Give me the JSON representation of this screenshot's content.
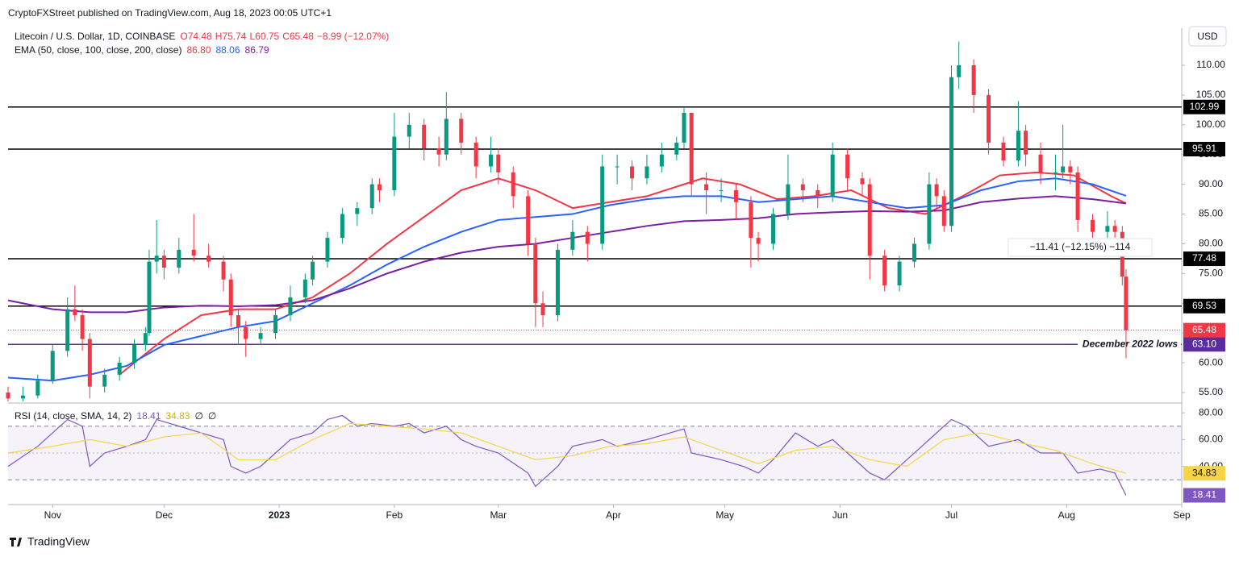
{
  "header": {
    "publisher": "CryptoFXStreet published on TradingView.com, Aug 18, 2023 00:05 UTC+1",
    "currency": "USD",
    "footer": "TradingView"
  },
  "chart_data": {
    "type": "candlestick",
    "legend": {
      "symbol": "Litecoin / U.S. Dollar, 1D, COINBASE",
      "open": "O74.48",
      "high": "H75.74",
      "low": "L60.75",
      "close": "C65.48",
      "change": "−8.99 (−12.07%)"
    },
    "ema_legend": {
      "label": "EMA (50, close, 100, close, 200, close)",
      "values": [
        "86.80",
        "88.06",
        "86.79"
      ]
    },
    "xlim": [
      -12,
      304
    ],
    "xticks": [
      {
        "value": 0,
        "label": "Nov"
      },
      {
        "value": 30,
        "label": "Dec"
      },
      {
        "value": 61,
        "label": "2023"
      },
      {
        "value": 92,
        "label": "Feb"
      },
      {
        "value": 120,
        "label": "Mar"
      },
      {
        "value": 151,
        "label": "Apr"
      },
      {
        "value": 181,
        "label": "May"
      },
      {
        "value": 212,
        "label": "Jun"
      },
      {
        "value": 242,
        "label": "Jul"
      },
      {
        "value": 273,
        "label": "Aug"
      },
      {
        "value": 304,
        "label": "Sep"
      }
    ],
    "ylim": [
      53.24,
      116.23
    ],
    "yticks": [
      {
        "value": 55,
        "label": "55.00"
      },
      {
        "value": 60,
        "label": "60.00"
      },
      {
        "value": 65,
        "label": "65.00"
      },
      {
        "value": 70,
        "label": "70.00"
      },
      {
        "value": 75,
        "label": "75.00"
      },
      {
        "value": 80,
        "label": "80.00"
      },
      {
        "value": 85,
        "label": "85.00"
      },
      {
        "value": 90,
        "label": "90.00"
      },
      {
        "value": 95,
        "label": "95.00"
      },
      {
        "value": 100,
        "label": "100.00"
      },
      {
        "value": 105,
        "label": "105.00"
      },
      {
        "value": 110,
        "label": "110.00"
      }
    ],
    "up_color": "#089981",
    "down_color": "#f23645",
    "candles": [
      {
        "x": -12,
        "o": 55,
        "h": 56,
        "l": 53.5,
        "c": 54
      },
      {
        "x": -8,
        "o": 54,
        "h": 56,
        "l": 53.5,
        "c": 54.5
      },
      {
        "x": -4,
        "o": 54.5,
        "h": 58,
        "l": 54,
        "c": 57
      },
      {
        "x": 0,
        "o": 57,
        "h": 63,
        "l": 56.5,
        "c": 62
      },
      {
        "x": 4,
        "o": 62,
        "h": 71,
        "l": 61,
        "c": 69
      },
      {
        "x": 6,
        "o": 69,
        "h": 73,
        "l": 67,
        "c": 68
      },
      {
        "x": 8,
        "o": 68,
        "h": 69,
        "l": 62,
        "c": 64
      },
      {
        "x": 10,
        "o": 64,
        "h": 65,
        "l": 54,
        "c": 56
      },
      {
        "x": 14,
        "o": 56,
        "h": 59,
        "l": 55,
        "c": 58
      },
      {
        "x": 18,
        "o": 58,
        "h": 61,
        "l": 57,
        "c": 60
      },
      {
        "x": 22,
        "o": 60,
        "h": 64,
        "l": 59,
        "c": 63
      },
      {
        "x": 25,
        "o": 63,
        "h": 66,
        "l": 62,
        "c": 65
      },
      {
        "x": 26,
        "o": 65,
        "h": 79,
        "l": 64.5,
        "c": 77
      },
      {
        "x": 28,
        "o": 77,
        "h": 84,
        "l": 75,
        "c": 78
      },
      {
        "x": 30,
        "o": 78,
        "h": 79,
        "l": 74,
        "c": 76
      },
      {
        "x": 34,
        "o": 76,
        "h": 81,
        "l": 75,
        "c": 79
      },
      {
        "x": 38,
        "o": 79,
        "h": 85,
        "l": 77,
        "c": 78
      },
      {
        "x": 42,
        "o": 78,
        "h": 80,
        "l": 76,
        "c": 77
      },
      {
        "x": 46,
        "o": 77,
        "h": 78,
        "l": 72,
        "c": 74
      },
      {
        "x": 48,
        "o": 74,
        "h": 75,
        "l": 66,
        "c": 68
      },
      {
        "x": 50,
        "o": 68,
        "h": 69,
        "l": 63,
        "c": 66
      },
      {
        "x": 52,
        "o": 66,
        "h": 67,
        "l": 61,
        "c": 64
      },
      {
        "x": 56,
        "o": 64,
        "h": 66,
        "l": 63,
        "c": 65
      },
      {
        "x": 60,
        "o": 65,
        "h": 69,
        "l": 64,
        "c": 68
      },
      {
        "x": 64,
        "o": 68,
        "h": 73,
        "l": 67,
        "c": 71
      },
      {
        "x": 68,
        "o": 71,
        "h": 75,
        "l": 70,
        "c": 74
      },
      {
        "x": 70,
        "o": 74,
        "h": 78,
        "l": 73,
        "c": 77
      },
      {
        "x": 74,
        "o": 77,
        "h": 82,
        "l": 76,
        "c": 81
      },
      {
        "x": 78,
        "o": 81,
        "h": 86,
        "l": 80,
        "c": 85
      },
      {
        "x": 82,
        "o": 85,
        "h": 87,
        "l": 83,
        "c": 86
      },
      {
        "x": 86,
        "o": 86,
        "h": 91,
        "l": 85,
        "c": 90
      },
      {
        "x": 88,
        "o": 90,
        "h": 91,
        "l": 87,
        "c": 89
      },
      {
        "x": 92,
        "o": 89,
        "h": 102,
        "l": 88,
        "c": 98
      },
      {
        "x": 96,
        "o": 98,
        "h": 102,
        "l": 96,
        "c": 100
      },
      {
        "x": 100,
        "o": 100,
        "h": 101,
        "l": 94,
        "c": 96
      },
      {
        "x": 104,
        "o": 96,
        "h": 98,
        "l": 93,
        "c": 95
      },
      {
        "x": 106,
        "o": 95,
        "h": 105.5,
        "l": 94,
        "c": 101
      },
      {
        "x": 110,
        "o": 101,
        "h": 102,
        "l": 95,
        "c": 97
      },
      {
        "x": 114,
        "o": 97,
        "h": 98,
        "l": 91,
        "c": 93
      },
      {
        "x": 118,
        "o": 93,
        "h": 98,
        "l": 92,
        "c": 95
      },
      {
        "x": 120,
        "o": 95,
        "h": 96,
        "l": 90,
        "c": 92
      },
      {
        "x": 124,
        "o": 92,
        "h": 93,
        "l": 86,
        "c": 88
      },
      {
        "x": 128,
        "o": 88,
        "h": 89,
        "l": 78,
        "c": 80
      },
      {
        "x": 130,
        "o": 80,
        "h": 81,
        "l": 66,
        "c": 70
      },
      {
        "x": 132,
        "o": 70,
        "h": 72,
        "l": 66,
        "c": 68
      },
      {
        "x": 136,
        "o": 68,
        "h": 80,
        "l": 67,
        "c": 79
      },
      {
        "x": 140,
        "o": 79,
        "h": 84,
        "l": 78,
        "c": 82
      },
      {
        "x": 144,
        "o": 82,
        "h": 83,
        "l": 77,
        "c": 80
      },
      {
        "x": 148,
        "o": 80,
        "h": 95,
        "l": 79,
        "c": 93
      },
      {
        "x": 152,
        "o": 93,
        "h": 95,
        "l": 90,
        "c": 93
      },
      {
        "x": 156,
        "o": 93,
        "h": 94,
        "l": 89,
        "c": 91
      },
      {
        "x": 160,
        "o": 91,
        "h": 95,
        "l": 90,
        "c": 93
      },
      {
        "x": 164,
        "o": 93,
        "h": 97,
        "l": 92,
        "c": 95
      },
      {
        "x": 168,
        "o": 95,
        "h": 98,
        "l": 94,
        "c": 97
      },
      {
        "x": 170,
        "o": 97,
        "h": 103,
        "l": 96,
        "c": 102
      },
      {
        "x": 172,
        "o": 102,
        "h": 102,
        "l": 88,
        "c": 90
      },
      {
        "x": 176,
        "o": 90,
        "h": 92,
        "l": 85,
        "c": 89
      },
      {
        "x": 180,
        "o": 89,
        "h": 91,
        "l": 87,
        "c": 89
      },
      {
        "x": 184,
        "o": 89,
        "h": 90,
        "l": 84,
        "c": 87
      },
      {
        "x": 188,
        "o": 87,
        "h": 88,
        "l": 76,
        "c": 81
      },
      {
        "x": 190,
        "o": 81,
        "h": 82,
        "l": 77,
        "c": 80
      },
      {
        "x": 194,
        "o": 80,
        "h": 86,
        "l": 79,
        "c": 85
      },
      {
        "x": 198,
        "o": 85,
        "h": 95,
        "l": 84,
        "c": 90
      },
      {
        "x": 202,
        "o": 90,
        "h": 91,
        "l": 87,
        "c": 89
      },
      {
        "x": 206,
        "o": 89,
        "h": 90,
        "l": 86,
        "c": 88
      },
      {
        "x": 210,
        "o": 88,
        "h": 97,
        "l": 87,
        "c": 95
      },
      {
        "x": 214,
        "o": 95,
        "h": 96,
        "l": 89,
        "c": 91
      },
      {
        "x": 218,
        "o": 91,
        "h": 92,
        "l": 88,
        "c": 90
      },
      {
        "x": 220,
        "o": 90,
        "h": 91,
        "l": 74,
        "c": 78
      },
      {
        "x": 224,
        "o": 78,
        "h": 79,
        "l": 72,
        "c": 73
      },
      {
        "x": 228,
        "o": 73,
        "h": 78,
        "l": 72,
        "c": 77
      },
      {
        "x": 232,
        "o": 77,
        "h": 81,
        "l": 76,
        "c": 80
      },
      {
        "x": 236,
        "o": 80,
        "h": 92,
        "l": 79,
        "c": 90
      },
      {
        "x": 238,
        "o": 90,
        "h": 91,
        "l": 86,
        "c": 88
      },
      {
        "x": 240,
        "o": 88,
        "h": 89,
        "l": 82,
        "c": 83
      },
      {
        "x": 242,
        "o": 83,
        "h": 110,
        "l": 82,
        "c": 108
      },
      {
        "x": 244,
        "o": 108,
        "h": 114,
        "l": 106,
        "c": 110
      },
      {
        "x": 248,
        "o": 110,
        "h": 111,
        "l": 102,
        "c": 105
      },
      {
        "x": 252,
        "o": 105,
        "h": 106,
        "l": 95,
        "c": 97
      },
      {
        "x": 256,
        "o": 97,
        "h": 98,
        "l": 93,
        "c": 94
      },
      {
        "x": 260,
        "o": 94,
        "h": 104,
        "l": 93,
        "c": 99
      },
      {
        "x": 262,
        "o": 99,
        "h": 100,
        "l": 93,
        "c": 95
      },
      {
        "x": 266,
        "o": 95,
        "h": 97,
        "l": 90,
        "c": 92
      },
      {
        "x": 270,
        "o": 92,
        "h": 95,
        "l": 89,
        "c": 92
      },
      {
        "x": 272,
        "o": 92,
        "h": 100,
        "l": 91,
        "c": 93
      },
      {
        "x": 274,
        "o": 93,
        "h": 94,
        "l": 90,
        "c": 92
      },
      {
        "x": 276,
        "o": 92,
        "h": 93,
        "l": 82,
        "c": 84
      },
      {
        "x": 280,
        "o": 84,
        "h": 85,
        "l": 81,
        "c": 82
      },
      {
        "x": 284,
        "o": 82,
        "h": 85.5,
        "l": 81,
        "c": 83
      },
      {
        "x": 286,
        "o": 83,
        "h": 84,
        "l": 81,
        "c": 82
      },
      {
        "x": 288,
        "o": 82,
        "h": 83,
        "l": 73,
        "c": 74.48
      },
      {
        "x": 289,
        "o": 74.48,
        "h": 75.74,
        "l": 60.75,
        "c": 65.48
      }
    ],
    "series": [
      {
        "name": "EMA 50",
        "color": "#f23645",
        "x": [
          18,
          30,
          40,
          50,
          60,
          70,
          80,
          90,
          100,
          110,
          120,
          130,
          140,
          150,
          160,
          170,
          175,
          185,
          195,
          205,
          215,
          225,
          235,
          245,
          255,
          265,
          275,
          285,
          289
        ],
        "values": [
          58,
          64,
          68,
          69,
          69,
          71,
          75,
          80,
          84.5,
          89,
          91,
          89,
          86,
          87,
          88,
          90,
          91,
          90,
          87.5,
          88,
          89,
          86,
          85,
          88,
          91.5,
          92,
          91.5,
          88,
          86.8
        ]
      },
      {
        "name": "EMA 100",
        "color": "#2962ff",
        "x": [
          -12,
          0,
          10,
          20,
          30,
          40,
          50,
          60,
          70,
          80,
          90,
          100,
          110,
          120,
          130,
          140,
          150,
          160,
          170,
          180,
          190,
          200,
          210,
          220,
          230,
          240,
          250,
          260,
          270,
          280,
          289
        ],
        "values": [
          57.5,
          57,
          58,
          59.5,
          63,
          64.5,
          66,
          67,
          70,
          73,
          76.5,
          79.5,
          82,
          84,
          84.5,
          85,
          86.5,
          87.5,
          88,
          88,
          87,
          87.5,
          88,
          87,
          86,
          86.5,
          89,
          90.5,
          91,
          90,
          88.06
        ]
      },
      {
        "name": "EMA 200",
        "color": "#7b1fa2",
        "x": [
          -12,
          0,
          10,
          20,
          30,
          40,
          50,
          60,
          70,
          80,
          90,
          100,
          110,
          120,
          130,
          140,
          150,
          160,
          170,
          180,
          190,
          200,
          210,
          220,
          230,
          240,
          250,
          260,
          270,
          280,
          289
        ],
        "values": [
          70.5,
          69,
          68.5,
          68.5,
          69.3,
          69.6,
          69.5,
          69.7,
          70.5,
          72.5,
          75,
          77,
          78.5,
          79.5,
          80,
          81,
          82,
          83,
          83.8,
          84,
          84.3,
          85,
          85.3,
          85.5,
          85.4,
          85.6,
          87,
          87.6,
          88,
          87.5,
          86.79
        ]
      }
    ],
    "levels": [
      {
        "value": 102.99,
        "label": "102.99",
        "color": "#000000"
      },
      {
        "value": 95.91,
        "label": "95.91",
        "color": "#000000"
      },
      {
        "value": 77.48,
        "label": "77.48",
        "color": "#000000"
      },
      {
        "value": 69.53,
        "label": "69.53",
        "color": "#000000"
      },
      {
        "value": 63.1,
        "label": "63.10",
        "color": "#5b2c9e",
        "text": "December 2022 lows"
      }
    ],
    "last_price": {
      "value": 65.48,
      "label": "65.48",
      "color": "#f23645"
    },
    "measure": {
      "label": "−11.41 (−12.15%) −114"
    },
    "rsi": {
      "legend": "RSI (14, close, SMA, 14, 2)",
      "legend_values": [
        "18.41",
        "34.83"
      ],
      "legend_extra": [
        "∅",
        "∅"
      ],
      "ylim": [
        11.5,
        87.3
      ],
      "yticks": [
        {
          "value": 80,
          "label": "80.00"
        },
        {
          "value": 60,
          "label": "60.00"
        },
        {
          "value": 40,
          "label": "40.00"
        }
      ],
      "bands": [
        70,
        50,
        30
      ],
      "series": [
        {
          "name": "RSI",
          "color": "#7e57c2",
          "label": "18.41",
          "x": [
            -12,
            -4,
            0,
            4,
            8,
            10,
            14,
            20,
            25,
            28,
            34,
            40,
            46,
            48,
            52,
            56,
            60,
            64,
            70,
            74,
            78,
            82,
            86,
            92,
            96,
            100,
            106,
            110,
            114,
            120,
            128,
            130,
            136,
            140,
            148,
            152,
            160,
            170,
            172,
            180,
            186,
            190,
            194,
            200,
            206,
            210,
            214,
            220,
            224,
            230,
            236,
            242,
            246,
            252,
            260,
            266,
            272,
            276,
            282,
            286,
            289
          ],
          "values": [
            40,
            55,
            65,
            75,
            70,
            40,
            50,
            55,
            60,
            75,
            70,
            65,
            60,
            40,
            35,
            40,
            50,
            60,
            65,
            75,
            78,
            70,
            72,
            70,
            72,
            65,
            70,
            60,
            55,
            50,
            35,
            25,
            40,
            55,
            60,
            55,
            60,
            68,
            50,
            45,
            40,
            35,
            45,
            65,
            55,
            60,
            50,
            35,
            30,
            45,
            60,
            75,
            70,
            55,
            60,
            50,
            50,
            35,
            38,
            35,
            18.41
          ]
        },
        {
          "name": "RSI SMA",
          "color": "#f7d443",
          "label": "34.83",
          "x": [
            -12,
            0,
            10,
            20,
            30,
            40,
            50,
            60,
            70,
            80,
            90,
            100,
            110,
            120,
            130,
            140,
            150,
            160,
            170,
            180,
            190,
            200,
            210,
            220,
            230,
            240,
            250,
            260,
            270,
            280,
            289
          ],
          "values": [
            50,
            55,
            60,
            55,
            62,
            65,
            45,
            45,
            60,
            72,
            70,
            68,
            65,
            55,
            45,
            48,
            55,
            57,
            62,
            52,
            42,
            52,
            55,
            45,
            40,
            60,
            65,
            58,
            52,
            42,
            34.83
          ]
        }
      ]
    }
  }
}
